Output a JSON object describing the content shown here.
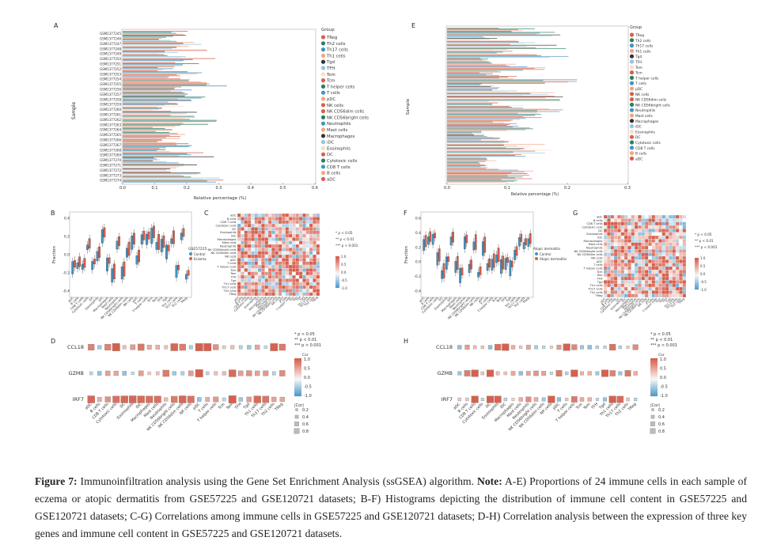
{
  "panels": {
    "A": {
      "letter": "A"
    },
    "B": {
      "letter": "B"
    },
    "C": {
      "letter": "C"
    },
    "D": {
      "letter": "D"
    },
    "E": {
      "letter": "E"
    },
    "F": {
      "letter": "F"
    },
    "G": {
      "letter": "G"
    },
    "H": {
      "letter": "H"
    }
  },
  "panel_A": {
    "ylabel": "Sample",
    "xlabel": "Relative percentage (%)",
    "xticks": [
      "0.0",
      "0.1",
      "0.2",
      "0.3",
      "0.4",
      "0.5",
      "0.6"
    ],
    "legend_title": "Group",
    "samples": [
      "GSM1377245",
      "GSM1377246",
      "GSM1377247",
      "GSM1377248",
      "GSM1377249",
      "GSM1377250",
      "GSM1377251",
      "GSM1377252",
      "GSM1377253",
      "GSM1377254",
      "GSM1377255",
      "GSM1377256",
      "GSM1377257",
      "GSM1377258",
      "GSM1377259",
      "GSM1377260",
      "GSM1377261",
      "GSM1377262",
      "GSM1377263",
      "GSM1377264",
      "GSM1377265",
      "GSM1377266",
      "GSM1377267",
      "GSM1377268",
      "GSM1377269",
      "GSM1377270",
      "GSM1377271",
      "GSM1377272",
      "GSM1377273",
      "GSM1377274"
    ]
  },
  "panel_E": {
    "ylabel": "Sample",
    "xlabel": "Relative percentage (%)",
    "xticks": [
      "0.0",
      "0.1",
      "0.2",
      "0.3"
    ],
    "legend_title": "Group"
  },
  "legend_A": [
    "TReg",
    "Th2 cells",
    "Th17 cells",
    "Th1 cells",
    "Tgd",
    "TFH",
    "Tem",
    "Tcm",
    "T helper cells",
    "T cells",
    "pDC",
    "NK cells",
    "NK CD56dim cells",
    "NK CD56bright cells",
    "Neutrophils",
    "Mast cells",
    "Macrophages",
    "iDC",
    "Eosinophils",
    "DC",
    "Cytotoxic cells",
    "CD8 T cells",
    "B cells",
    "aDC"
  ],
  "legend_E": [
    "TReg",
    "Th2 cells",
    "Th17 cells",
    "Th1 cells",
    "Tgd",
    "TFH",
    "Tem",
    "Tcm",
    "T helper cells",
    "T cells",
    "pDC",
    "NK cells",
    "NK CD56dim cells",
    "NK CD56bright cells",
    "Neutrophils",
    "Mast cells",
    "Macrophages",
    "iDC",
    "Eosinophils",
    "DC",
    "Cytotoxic cells",
    "CD8 T cells",
    "B cells",
    "aDC"
  ],
  "colors": {
    "red": "#d6604d",
    "teal": "#2a7f62",
    "blue": "#4393c3",
    "orange": "#f4a582",
    "pale": "#fddbc7",
    "lightblue": "#92c5de",
    "dark": "#333333",
    "grey": "#bbbbbb"
  },
  "panel_B": {
    "ylabel": "Fraction",
    "yticks": [
      "0.4",
      "0.2",
      "0.0",
      "-0.2",
      "-0.4"
    ],
    "legend_title": "GSE57225",
    "legend_items": [
      "Control",
      "Eczema"
    ]
  },
  "panel_F": {
    "ylabel": "Fraction",
    "yticks": [
      "0.6",
      "0.4",
      "0.2",
      "0.0",
      "-0.2",
      "-0.4"
    ],
    "legend_title": "Atopic dermatitis",
    "legend_items": [
      "Control",
      "Atopic dermatitis"
    ]
  },
  "cells_B": [
    "aDC",
    "B cells",
    "CD8 T cells",
    "Cytotoxic cells",
    "DC",
    "Eosinophils",
    "iDC",
    "Macrophages",
    "Mast cells",
    "Neutrophils",
    "NK CD56bright cells",
    "NK CD56dim cells",
    "NK cells",
    "pDC",
    "T cells",
    "T helper cells",
    "Tcm",
    "Tem",
    "TFH",
    "Tgd",
    "Th1 cells",
    "Th17 cells",
    "Th2 cells",
    "TReg"
  ],
  "corr_rows": [
    "aDC",
    "B cells",
    "CD8 T cells",
    "Cytotoxic cells",
    "DC",
    "Eosinophils",
    "iDC",
    "Macrophages",
    "Mast cells",
    "Neutrophils",
    "NK CD56bright cells",
    "NK CD56dim cells",
    "NK cells",
    "pDC",
    "T cells",
    "T helper cells",
    "Tcm",
    "Tem",
    "TFH",
    "Tgd",
    "Th1 cells",
    "Th17 cells",
    "Th2 cells",
    "TReg"
  ],
  "panel_C": {
    "legend": [
      "* p < 0.05",
      "** p < 0.01",
      "*** p < 0.001"
    ],
    "scale": [
      "1.0",
      "0.5",
      "0.0",
      "-0.5",
      "-1.0"
    ]
  },
  "panel_G": {
    "legend": [
      "* p < 0.05",
      "** p < 0.01",
      "*** p < 0.001"
    ],
    "scale": [
      "1.0",
      "0.5",
      "0.0",
      "-0.5",
      "-1.0"
    ]
  },
  "genes": [
    "CCL18",
    "GZMB",
    "IRF7"
  ],
  "gene_cells": [
    "aDC",
    "B cells",
    "CD8 T cells",
    "Cytotoxic cells",
    "DC",
    "Eosinophils",
    "iDC",
    "Macrophages",
    "Mast cells",
    "Neutrophils",
    "NK CD56bright cells",
    "NK CD56dim cells",
    "NK cells",
    "pDC",
    "T cells",
    "T helper cells",
    "Tcm",
    "Tem",
    "TFH",
    "Tgd",
    "Th1 cells",
    "Th17 cells",
    "Th2 cells",
    "TReg"
  ],
  "panel_D": {
    "sig": [
      "* p < 0.05",
      "** p < 0.01",
      "*** p < 0.001"
    ],
    "cor_title": "Cor",
    "cor_scale": [
      "1.0",
      "0.5",
      "0.0",
      "-0.5",
      "-1.0"
    ],
    "abs_title": "|Cor|",
    "abs_scale": [
      "0.2",
      "0.4",
      "0.6",
      "0.8"
    ]
  },
  "panel_H": {
    "sig": [
      "* p < 0.05",
      "** p < 0.01",
      "*** p < 0.001"
    ],
    "cor_title": "Cor",
    "cor_scale": [
      "1.0",
      "0.5",
      "0.0",
      "-0.5",
      "-1.0"
    ],
    "abs_title": "|Cor|",
    "abs_scale": [
      "0.2",
      "0.4",
      "0.6",
      "0.8"
    ]
  },
  "caption": {
    "label": "Figure 7:",
    "text1": "Immunoinfiltration analysis using the Gene Set Enrichment Analysis (ssGSEA) algorithm.",
    "note_label": "Note:",
    "text2": "A-E) Proportions of 24 immune cells in each sample of eczema or atopic dermatitis from GSE57225 and GSE120721 datasets; B-F) Histograms depicting the distribution of immune cell content in GSE57225 and GSE120721 datasets; C-G) Correlations among immune cells in GSE57225 and GSE120721 datasets; D-H) Correlation analysis between the expression of three key genes and immune cell content in GSE57225 and GSE120721 datasets."
  }
}
